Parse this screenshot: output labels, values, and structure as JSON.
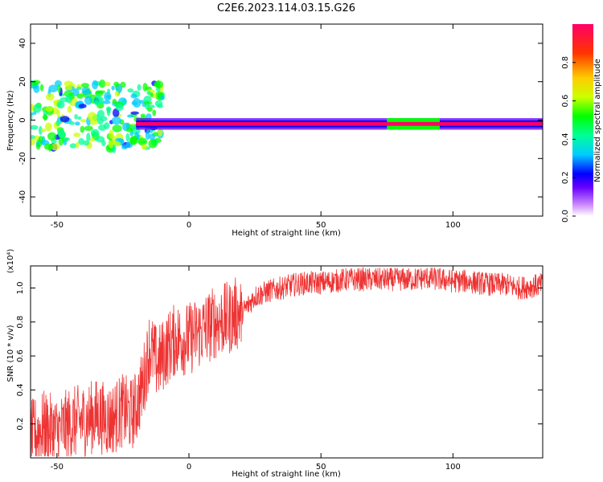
{
  "title": "C2E6.2023.114.03.15.G26",
  "colors": {
    "snr_line": "#ee3333",
    "axes": "#000000",
    "colormap": [
      "#ffffff",
      "#cc88ff",
      "#6600ff",
      "#0000ff",
      "#00ccff",
      "#00ff99",
      "#00ff00",
      "#ccff00",
      "#ffcc00",
      "#ff3300",
      "#ff0066"
    ]
  },
  "chart_data": [
    {
      "type": "heatmap",
      "xlabel": "Height of straight line (km)",
      "ylabel": "Frequency (Hz)",
      "xlim": [
        -60,
        134
      ],
      "ylim": [
        -50,
        50
      ],
      "x_ticks": [
        -50,
        0,
        50,
        100
      ],
      "y_ticks": [
        40,
        20,
        0,
        -20,
        -40
      ],
      "grid": false,
      "colorbar": {
        "label": "Normalized spectral amplitude",
        "range": [
          0,
          1
        ],
        "ticks": [
          "0.0",
          "0.2",
          "0.4",
          "0.6",
          "0.8"
        ]
      },
      "features": [
        {
          "description": "dominant ridge",
          "x_range": [
            -20,
            134
          ],
          "frequency_hz": -2,
          "amplitude": 0.9
        },
        {
          "description": "scattered returns",
          "x_range": [
            -60,
            -10
          ],
          "frequency_range": [
            -15,
            20
          ],
          "amplitude_range": [
            0.2,
            0.6
          ]
        },
        {
          "description": "broadened segment",
          "x_range": [
            75,
            95
          ],
          "frequency_range": [
            -5,
            1
          ],
          "amplitude": 0.5
        }
      ]
    },
    {
      "type": "line",
      "xlabel": "Height of straight line (km)",
      "ylabel": "SNR (10 * v/v)",
      "y_multiplier": "(x10⁴)",
      "xlim": [
        -60,
        134
      ],
      "ylim": [
        0,
        1.13
      ],
      "x_ticks": [
        -50,
        0,
        50,
        100
      ],
      "y_ticks": [
        "0.2",
        "0.4",
        "0.6",
        "0.8",
        "1.0"
      ],
      "grid": false,
      "series": [
        {
          "x": [
            -60,
            -55,
            -50,
            -45,
            -40,
            -35,
            -30,
            -25,
            -22,
            -20,
            -18,
            -16,
            -15,
            -14,
            -12,
            -10,
            -8,
            -5,
            0,
            5,
            10,
            15,
            18,
            20,
            25,
            30,
            35,
            40,
            45,
            50,
            55,
            60,
            70,
            80,
            85,
            90,
            95,
            100,
            105,
            110,
            115,
            120,
            125,
            130,
            134
          ],
          "y": [
            0.12,
            0.18,
            0.15,
            0.2,
            0.22,
            0.25,
            0.22,
            0.28,
            0.25,
            0.3,
            0.4,
            0.55,
            0.65,
            0.62,
            0.55,
            0.6,
            0.65,
            0.7,
            0.7,
            0.75,
            0.8,
            0.82,
            0.85,
            0.85,
            0.95,
            0.98,
            1.0,
            1.02,
            1.03,
            1.03,
            1.04,
            1.05,
            1.05,
            1.05,
            1.05,
            1.06,
            1.05,
            1.04,
            1.04,
            1.03,
            1.02,
            1.02,
            1.0,
            1.01,
            1.02
          ]
        }
      ]
    }
  ]
}
